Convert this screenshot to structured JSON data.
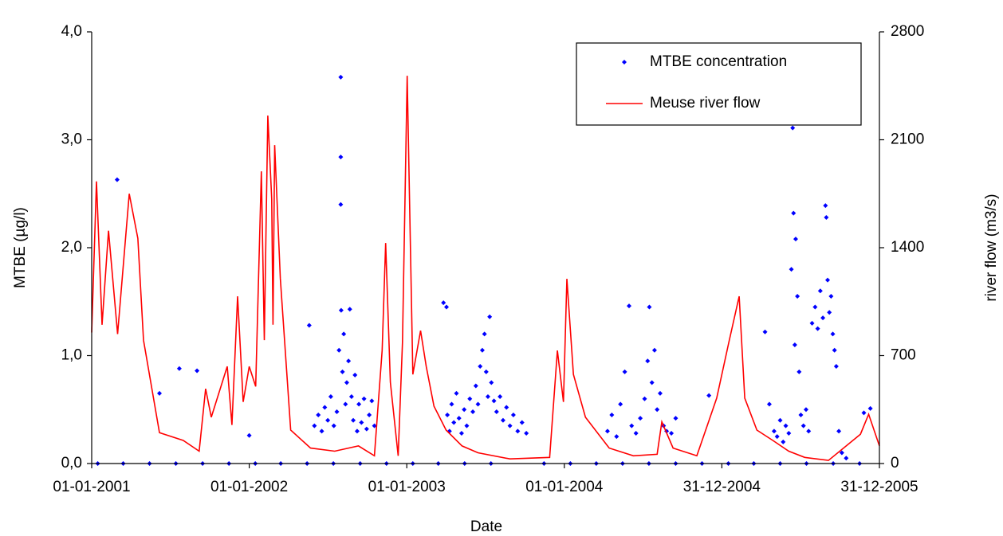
{
  "chart_data": {
    "type": "scatter",
    "x_label": "Date",
    "y_label": "MTBE (µg/l)",
    "y2_label": "river flow (m3/s)",
    "xlim": [
      "2001-01-01",
      "2005-12-31"
    ],
    "xticks": [
      {
        "value": "2001-01-01",
        "label": "01-01-2001"
      },
      {
        "value": "2002-01-01",
        "label": "01-01-2002"
      },
      {
        "value": "2003-01-01",
        "label": "01-01-2003"
      },
      {
        "value": "2004-01-01",
        "label": "01-01-2004"
      },
      {
        "value": "2004-12-31",
        "label": "31-12-2004"
      },
      {
        "value": "2005-12-31",
        "label": "31-12-2005"
      }
    ],
    "ylim": [
      0,
      4
    ],
    "yticks": [
      {
        "value": 0,
        "label": "0,0"
      },
      {
        "value": 1,
        "label": "1,0"
      },
      {
        "value": 2,
        "label": "2,0"
      },
      {
        "value": 3,
        "label": "3,0"
      },
      {
        "value": 4,
        "label": "4,0"
      }
    ],
    "y2lim": [
      0,
      2800
    ],
    "y2ticks": [
      0,
      700,
      1400,
      2100,
      2800
    ],
    "grid": false,
    "legend": "top-right",
    "series": [
      {
        "name": "MTBE concentration",
        "type": "scatter",
        "color": "#0000ff",
        "x": [
          "2001-01-15",
          "2001-03-01",
          "2001-03-15",
          "2001-05-15",
          "2001-06-07",
          "2001-07-15",
          "2001-07-23",
          "2001-09-02",
          "2001-09-15",
          "2001-11-15",
          "2002-01-01",
          "2002-01-15",
          "2002-03-15",
          "2002-05-15",
          "2002-05-20",
          "2002-06-01",
          "2002-06-10",
          "2002-06-18",
          "2002-06-25",
          "2002-07-02",
          "2002-07-09",
          "2002-07-15",
          "2002-07-16",
          "2002-07-23",
          "2002-07-28",
          "2002-08-01",
          "2002-08-01",
          "2002-08-01",
          "2002-08-02",
          "2002-08-05",
          "2002-08-08",
          "2002-08-12",
          "2002-08-15",
          "2002-08-19",
          "2002-08-22",
          "2002-08-26",
          "2002-08-30",
          "2002-09-03",
          "2002-09-08",
          "2002-09-12",
          "2002-09-15",
          "2002-09-18",
          "2002-09-24",
          "2002-09-30",
          "2002-10-06",
          "2002-10-12",
          "2002-10-18",
          "2002-11-15",
          "2003-01-15",
          "2003-03-15",
          "2003-03-27",
          "2003-04-03",
          "2003-04-05",
          "2003-04-10",
          "2003-04-15",
          "2003-04-20",
          "2003-04-26",
          "2003-05-02",
          "2003-05-08",
          "2003-05-14",
          "2003-05-15",
          "2003-05-20",
          "2003-05-27",
          "2003-06-03",
          "2003-06-10",
          "2003-06-15",
          "2003-06-20",
          "2003-06-25",
          "2003-06-30",
          "2003-07-04",
          "2003-07-08",
          "2003-07-12",
          "2003-07-15",
          "2003-07-16",
          "2003-07-22",
          "2003-07-28",
          "2003-08-05",
          "2003-08-12",
          "2003-08-20",
          "2003-08-28",
          "2003-09-05",
          "2003-09-15",
          "2003-09-25",
          "2003-10-05",
          "2003-11-15",
          "2004-01-15",
          "2004-03-15",
          "2004-04-10",
          "2004-04-20",
          "2004-05-01",
          "2004-05-10",
          "2004-05-15",
          "2004-05-20",
          "2004-05-30",
          "2004-06-05",
          "2004-06-15",
          "2004-06-25",
          "2004-07-05",
          "2004-07-12",
          "2004-07-15",
          "2004-07-16",
          "2004-07-22",
          "2004-07-28",
          "2004-08-03",
          "2004-08-10",
          "2004-08-18",
          "2004-08-25",
          "2004-09-05",
          "2004-09-15",
          "2004-09-15",
          "2004-11-15",
          "2004-12-01",
          "2005-01-15",
          "2005-03-15",
          "2005-04-10",
          "2005-04-20",
          "2005-05-01",
          "2005-05-08",
          "2005-05-15",
          "2005-05-15",
          "2005-05-22",
          "2005-05-28",
          "2005-06-04",
          "2005-06-10",
          "2005-06-13",
          "2005-06-15",
          "2005-06-18",
          "2005-06-20",
          "2005-06-24",
          "2005-06-28",
          "2005-07-02",
          "2005-07-08",
          "2005-07-14",
          "2005-07-15",
          "2005-07-20",
          "2005-07-28",
          "2005-08-04",
          "2005-08-10",
          "2005-08-16",
          "2005-08-22",
          "2005-08-28",
          "2005-08-30",
          "2005-09-02",
          "2005-09-06",
          "2005-09-10",
          "2005-09-14",
          "2005-09-15",
          "2005-09-18",
          "2005-09-22",
          "2005-09-28",
          "2005-10-05",
          "2005-10-15",
          "2005-11-15",
          "2005-11-25",
          "2005-12-10"
        ],
        "values": [
          0,
          2.63,
          0,
          0,
          0.65,
          0,
          0.88,
          0.86,
          0,
          0,
          0.26,
          0,
          0,
          0,
          1.28,
          0.35,
          0.45,
          0.3,
          0.52,
          0.4,
          0.62,
          0,
          0.35,
          0.48,
          1.05,
          3.58,
          2.84,
          2.4,
          1.42,
          0.85,
          1.2,
          0.55,
          0.75,
          0.95,
          1.43,
          0.62,
          0.4,
          0.82,
          0.3,
          0.55,
          0,
          0.38,
          0.6,
          0.32,
          0.45,
          0.58,
          0.35,
          0,
          0,
          0,
          1.49,
          1.45,
          0.45,
          0.3,
          0.55,
          0.38,
          0.65,
          0.42,
          0.28,
          0.5,
          0,
          0.35,
          0.6,
          0.48,
          0.72,
          0.55,
          0.9,
          1.05,
          1.2,
          0.85,
          0.62,
          1.36,
          0,
          0.75,
          0.58,
          0.48,
          0.62,
          0.4,
          0.52,
          0.35,
          0.45,
          0.3,
          0.38,
          0.28,
          0,
          0,
          0,
          0.3,
          0.45,
          0.25,
          0.55,
          0,
          0.85,
          1.46,
          0.35,
          0.28,
          0.42,
          0.6,
          0.95,
          0,
          1.45,
          0.75,
          1.05,
          0.5,
          0.65,
          0.35,
          0.3,
          0.28,
          0,
          0.42,
          0,
          0.63,
          0,
          0,
          1.22,
          0.55,
          0.3,
          0.25,
          0,
          0.4,
          0.2,
          0.35,
          0.28,
          1.8,
          3.11,
          2.32,
          1.1,
          2.08,
          1.55,
          0.85,
          0.45,
          0.35,
          0.5,
          0,
          0.3,
          1.3,
          1.45,
          1.25,
          1.6,
          1.35,
          2.39,
          2.28,
          1.7,
          1.4,
          1.55,
          1.2,
          0,
          1.05,
          0.9,
          0.3,
          0.1,
          0.05,
          0,
          0.47,
          0.51
        ]
      },
      {
        "name": "Meuse river flow",
        "type": "line",
        "color": "#ff0000",
        "axis": "y2",
        "x": [
          "2001-01-01",
          "2001-01-12",
          "2001-01-25",
          "2001-02-09",
          "2001-03-02",
          "2001-03-29",
          "2001-04-18",
          "2001-05-01",
          "2001-06-07",
          "2001-08-01",
          "2001-09-07",
          "2001-09-22",
          "2001-10-05",
          "2001-11-11",
          "2001-11-22",
          "2001-12-05",
          "2001-12-18",
          "2002-01-01",
          "2002-01-16",
          "2002-01-29",
          "2002-02-05",
          "2002-02-13",
          "2002-02-22",
          "2002-02-25",
          "2002-03-01",
          "2002-03-14",
          "2002-04-07",
          "2002-05-23",
          "2002-07-18",
          "2002-09-11",
          "2002-10-18",
          "2002-11-05",
          "2002-11-13",
          "2002-11-24",
          "2002-12-12",
          "2002-12-22",
          "2003-01-02",
          "2003-01-15",
          "2003-02-02",
          "2003-02-15",
          "2003-03-05",
          "2003-04-02",
          "2003-05-09",
          "2003-06-15",
          "2003-08-28",
          "2003-11-28",
          "2003-12-16",
          "2003-12-30",
          "2004-01-07",
          "2004-01-22",
          "2004-02-19",
          "2004-04-14",
          "2004-06-09",
          "2004-08-03",
          "2004-08-14",
          "2004-09-09",
          "2004-11-03",
          "2004-12-19",
          "2005-01-16",
          "2005-02-09",
          "2005-02-22",
          "2005-03-22",
          "2005-04-28",
          "2005-06-04",
          "2005-07-11",
          "2005-09-04",
          "2005-11-17",
          "2005-12-06",
          "2005-12-31"
        ],
        "values": [
          850,
          1830,
          900,
          1510,
          840,
          1750,
          1460,
          800,
          200,
          150,
          80,
          485,
          300,
          630,
          250,
          1085,
          400,
          630,
          500,
          1895,
          800,
          2257,
          1715,
          900,
          2066,
          1200,
          217,
          100,
          80,
          114,
          50,
          733,
          1430,
          527,
          50,
          785,
          2515,
          578,
          862,
          630,
          372,
          217,
          114,
          70,
          30,
          40,
          733,
          400,
          1198,
          578,
          300,
          100,
          50,
          60,
          270,
          100,
          50,
          424,
          785,
          1085,
          424,
          217,
          150,
          80,
          40,
          20,
          190,
          320,
          114
        ]
      }
    ]
  }
}
